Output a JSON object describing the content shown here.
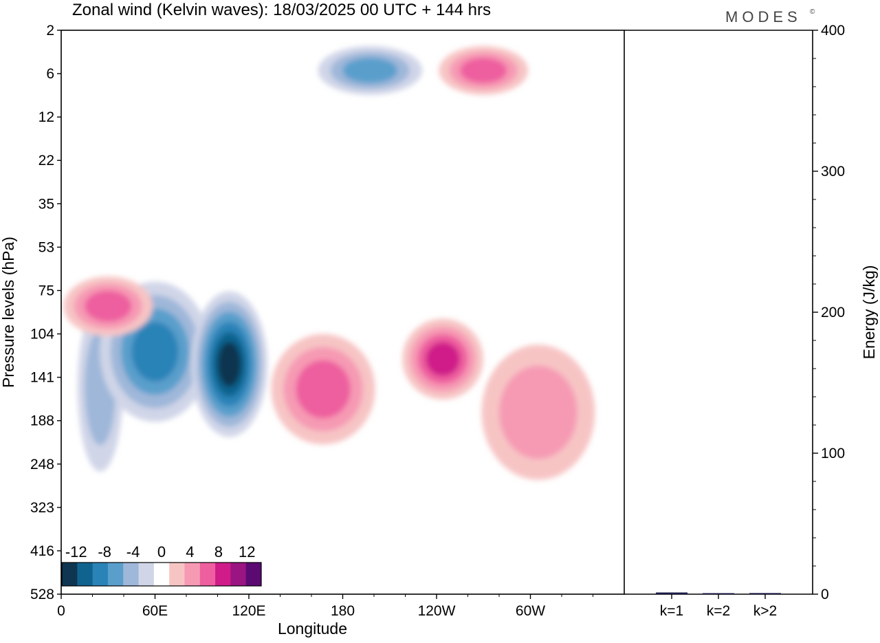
{
  "title": "Zonal wind (Kelvin waves):  18/03/2025  00 UTC  + 144 hrs",
  "brand": "MODES",
  "brand_mark": "©",
  "chart_data": [
    {
      "type": "heatmap",
      "subject": "zonal wind contours",
      "xlabel": "Longitude",
      "ylabel": "Pressure levels (hPa)",
      "x_ticks": [
        "0",
        "60E",
        "120E",
        "180",
        "120W",
        "60W"
      ],
      "x_tick_degrees": [
        0,
        60,
        120,
        180,
        240,
        300
      ],
      "xlim": [
        0,
        360
      ],
      "y_ticks": [
        "2",
        "6",
        "12",
        "22",
        "35",
        "53",
        "75",
        "104",
        "141",
        "188",
        "248",
        "323",
        "416",
        "528"
      ],
      "y_scale": "log",
      "y_inverted": true,
      "colorbar": {
        "labels": [
          "-12",
          "-8",
          "-4",
          "0",
          "4",
          "8",
          "12"
        ],
        "label_values": [
          -12,
          -8,
          -4,
          0,
          4,
          8,
          12
        ],
        "levels": [
          -14,
          -12,
          -10,
          -8,
          -6,
          -4,
          -2,
          2,
          4,
          6,
          8,
          10,
          12,
          14
        ],
        "colors": [
          "#0f3550",
          "#11638f",
          "#2a83b7",
          "#5a9fcc",
          "#9fb7d9",
          "#d0d5e8",
          "#ffffff",
          "#f7c4c4",
          "#f69ab4",
          "#ee5f9f",
          "#cf1c89",
          "#9a1482",
          "#5b0a72"
        ]
      },
      "features": [
        {
          "kind": "negative",
          "level": -4,
          "lon_range": [
            15,
            35
          ],
          "hPa_range": [
            100,
            220
          ]
        },
        {
          "kind": "negative",
          "level": -8,
          "lon_range": [
            45,
            75
          ],
          "hPa_range": [
            95,
            145
          ]
        },
        {
          "kind": "negative",
          "level": -12,
          "lon_range": [
            100,
            115
          ],
          "hPa_range": [
            110,
            150
          ]
        },
        {
          "kind": "positive",
          "level": 6,
          "lon_range": [
            15,
            45
          ],
          "hPa_range": [
            75,
            95
          ]
        },
        {
          "kind": "positive",
          "level": 6,
          "lon_range": [
            150,
            185
          ],
          "hPa_range": [
            125,
            185
          ]
        },
        {
          "kind": "positive",
          "level": 8,
          "lon_range": [
            233,
            255
          ],
          "hPa_range": [
            110,
            140
          ]
        },
        {
          "kind": "positive",
          "level": 4,
          "lon_range": [
            280,
            330
          ],
          "hPa_range": [
            130,
            240
          ]
        },
        {
          "kind": "negative",
          "level": -6,
          "lon_range": [
            180,
            215
          ],
          "hPa_range": [
            4,
            7
          ]
        },
        {
          "kind": "positive",
          "level": 6,
          "lon_range": [
            255,
            285
          ],
          "hPa_range": [
            4,
            7
          ]
        }
      ]
    },
    {
      "type": "bar",
      "subject": "wavenumber energy",
      "categories": [
        "k=1",
        "k=2",
        "k>2"
      ],
      "values": [
        1.2,
        0.6,
        0.8
      ],
      "ylabel": "Energy (J/kg)",
      "y_ticks": [
        "0",
        "100",
        "200",
        "300",
        "400"
      ],
      "y_tick_values": [
        0,
        100,
        200,
        300,
        400
      ],
      "ylim": [
        0,
        400
      ],
      "bar_color": "#1a1a4a"
    }
  ]
}
